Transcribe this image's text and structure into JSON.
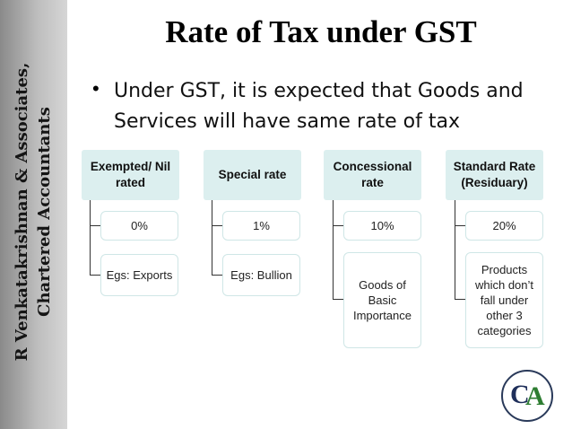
{
  "sidebar": {
    "line1": "R Venkatakrishnan & Associates,",
    "line2": "Chartered Accountants"
  },
  "slide": {
    "title": "Rate of Tax under GST",
    "bullet": "Under GST, it is expected that Goods and Services will have same rate of tax"
  },
  "categories": [
    {
      "heading": "Exempted/ Nil rated",
      "rate": "0%",
      "example": "Egs: Exports"
    },
    {
      "heading": "Special rate",
      "rate": "1%",
      "example": "Egs: Bullion"
    },
    {
      "heading": "Concessional rate",
      "rate": "10%",
      "example": "Goods of Basic Importance"
    },
    {
      "heading": "Standard Rate (Residuary)",
      "rate": "20%",
      "example": "Products which don’t fall under other 3 categories"
    }
  ],
  "logo": {
    "letters": "CA",
    "color_primary": "#1f2f5a",
    "color_accent": "#2e7d32"
  }
}
